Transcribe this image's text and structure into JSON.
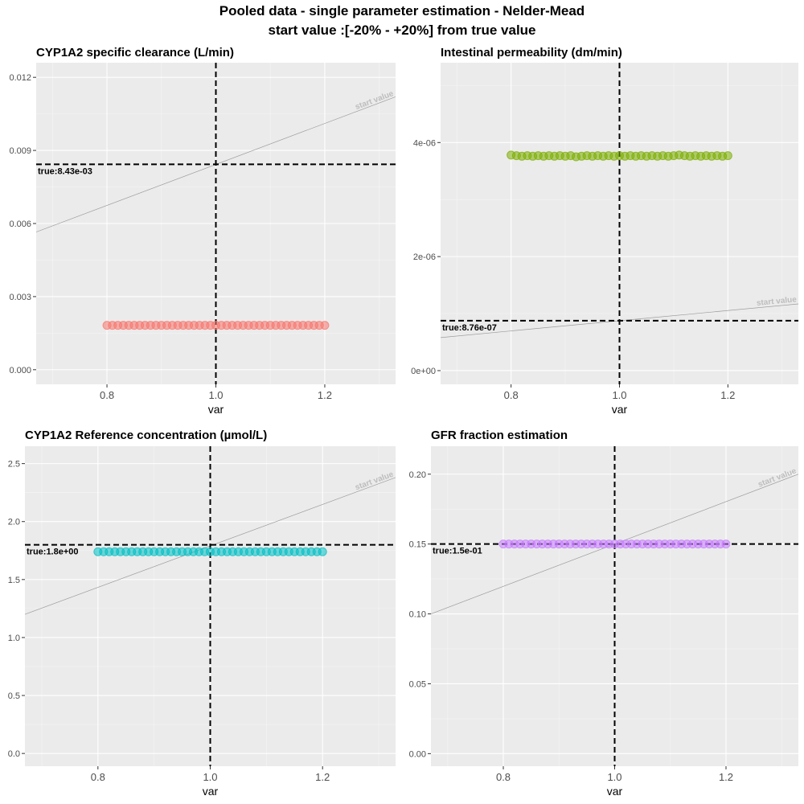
{
  "figure": {
    "title_line1": "Pooled data - single parameter estimation - Nelder-Mead",
    "title_line2": "start value :[-20% - +20%] from true value"
  },
  "chart_data": [
    {
      "type": "scatter",
      "title": "CYP1A2 specific clearance (L/min)",
      "xlabel": "var",
      "ylabel": "",
      "xlim": [
        0.67,
        1.33
      ],
      "ylim": [
        -0.0006,
        0.0126
      ],
      "xticks": [
        0.8,
        1.0,
        1.2
      ],
      "xtick_labels": [
        "0.8",
        "1.0",
        "1.2"
      ],
      "yticks": [
        0,
        0.003,
        0.006,
        0.009,
        0.012
      ],
      "ytick_labels": [
        "0.000",
        "0.003",
        "0.006",
        "0.009",
        "0.012"
      ],
      "grid": true,
      "point_color": "#F8766D",
      "x": [
        0.8,
        0.81,
        0.82,
        0.83,
        0.84,
        0.85,
        0.86,
        0.87,
        0.88,
        0.89,
        0.9,
        0.91,
        0.92,
        0.93,
        0.94,
        0.95,
        0.96,
        0.97,
        0.98,
        0.99,
        1.0,
        1.01,
        1.02,
        1.03,
        1.04,
        1.05,
        1.06,
        1.07,
        1.08,
        1.09,
        1.1,
        1.11,
        1.12,
        1.13,
        1.14,
        1.15,
        1.16,
        1.17,
        1.18,
        1.19,
        1.2
      ],
      "y": [
        0.00182,
        0.00182,
        0.00182,
        0.00182,
        0.00182,
        0.00182,
        0.00182,
        0.00182,
        0.00182,
        0.00182,
        0.00182,
        0.00182,
        0.00182,
        0.00182,
        0.00182,
        0.00182,
        0.00182,
        0.00182,
        0.00182,
        0.00182,
        0.00182,
        0.00182,
        0.00182,
        0.00182,
        0.00182,
        0.00182,
        0.00182,
        0.00182,
        0.00182,
        0.00182,
        0.00182,
        0.00182,
        0.00182,
        0.00182,
        0.00182,
        0.00182,
        0.00182,
        0.00182,
        0.00182,
        0.00182,
        0.00182
      ],
      "true_value": 0.00843,
      "true_label": "true:8.43e-03",
      "start_line": [
        [
          0.67,
          0.00565
        ],
        [
          1.33,
          0.0112
        ]
      ],
      "start_label": "start value",
      "vline_x": 1.0
    },
    {
      "type": "scatter",
      "title": "Intestinal permeability (dm/min)",
      "xlabel": "var",
      "ylabel": "",
      "xlim": [
        0.67,
        1.33
      ],
      "ylim": [
        -2.4e-07,
        5.4e-06
      ],
      "xticks": [
        0.8,
        1.0,
        1.2
      ],
      "xtick_labels": [
        "0.8",
        "1.0",
        "1.2"
      ],
      "yticks": [
        0,
        2e-06,
        4e-06
      ],
      "ytick_labels": [
        "0e+00",
        "2e-06",
        "4e-06"
      ],
      "grid": true,
      "point_color": "#7CAE00",
      "x": [
        0.8,
        0.81,
        0.82,
        0.83,
        0.84,
        0.85,
        0.86,
        0.87,
        0.88,
        0.89,
        0.9,
        0.91,
        0.92,
        0.93,
        0.94,
        0.95,
        0.96,
        0.97,
        0.98,
        0.99,
        1.0,
        1.01,
        1.02,
        1.03,
        1.04,
        1.05,
        1.06,
        1.07,
        1.08,
        1.09,
        1.1,
        1.11,
        1.12,
        1.13,
        1.14,
        1.15,
        1.16,
        1.17,
        1.18,
        1.19,
        1.2
      ],
      "y": [
        3.78e-06,
        3.77e-06,
        3.76e-06,
        3.77e-06,
        3.76e-06,
        3.77e-06,
        3.76e-06,
        3.77e-06,
        3.76e-06,
        3.77e-06,
        3.76e-06,
        3.77e-06,
        3.75e-06,
        3.76e-06,
        3.77e-06,
        3.76e-06,
        3.77e-06,
        3.76e-06,
        3.77e-06,
        3.76e-06,
        3.77e-06,
        3.76e-06,
        3.77e-06,
        3.76e-06,
        3.77e-06,
        3.76e-06,
        3.77e-06,
        3.76e-06,
        3.77e-06,
        3.76e-06,
        3.77e-06,
        3.78e-06,
        3.77e-06,
        3.76e-06,
        3.77e-06,
        3.76e-06,
        3.77e-06,
        3.76e-06,
        3.77e-06,
        3.76e-06,
        3.77e-06
      ],
      "true_value": 8.76e-07,
      "true_label": "true:8.76e-07",
      "start_line": [
        [
          0.67,
          5.8e-07
        ],
        [
          1.33,
          1.17e-06
        ]
      ],
      "start_label": "start value",
      "vline_x": 1.0
    },
    {
      "type": "scatter",
      "title": "CYP1A2 Reference concentration (µmol/L)",
      "xlabel": "var",
      "ylabel": "",
      "xlim": [
        0.67,
        1.33
      ],
      "ylim": [
        -0.11,
        2.65
      ],
      "xticks": [
        0.8,
        1.0,
        1.2
      ],
      "xtick_labels": [
        "0.8",
        "1.0",
        "1.2"
      ],
      "yticks": [
        0,
        0.5,
        1.0,
        1.5,
        2.0,
        2.5
      ],
      "ytick_labels": [
        "0.0",
        "0.5",
        "1.0",
        "1.5",
        "2.0",
        "2.5"
      ],
      "grid": true,
      "point_color": "#00BFC4",
      "x": [
        0.8,
        0.81,
        0.82,
        0.83,
        0.84,
        0.85,
        0.86,
        0.87,
        0.88,
        0.89,
        0.9,
        0.91,
        0.92,
        0.93,
        0.94,
        0.95,
        0.96,
        0.97,
        0.98,
        0.99,
        1.0,
        1.01,
        1.02,
        1.03,
        1.04,
        1.05,
        1.06,
        1.07,
        1.08,
        1.09,
        1.1,
        1.11,
        1.12,
        1.13,
        1.14,
        1.15,
        1.16,
        1.17,
        1.18,
        1.19,
        1.2
      ],
      "y": [
        1.74,
        1.74,
        1.74,
        1.74,
        1.74,
        1.74,
        1.74,
        1.74,
        1.74,
        1.74,
        1.74,
        1.74,
        1.74,
        1.74,
        1.74,
        1.74,
        1.74,
        1.74,
        1.74,
        1.74,
        1.74,
        1.74,
        1.74,
        1.74,
        1.74,
        1.74,
        1.74,
        1.74,
        1.74,
        1.74,
        1.74,
        1.74,
        1.74,
        1.74,
        1.74,
        1.74,
        1.74,
        1.74,
        1.74,
        1.74,
        1.74
      ],
      "true_value": 1.8,
      "true_label": "true:1.8e+00",
      "start_line": [
        [
          0.67,
          1.2
        ],
        [
          1.33,
          2.38
        ]
      ],
      "start_label": "start value",
      "vline_x": 1.0
    },
    {
      "type": "scatter",
      "title": "GFR fraction estimation",
      "xlabel": "var",
      "ylabel": "",
      "xlim": [
        0.67,
        1.33
      ],
      "ylim": [
        -0.009,
        0.22
      ],
      "xticks": [
        0.8,
        1.0,
        1.2
      ],
      "xtick_labels": [
        "0.8",
        "1.0",
        "1.2"
      ],
      "yticks": [
        0,
        0.05,
        0.1,
        0.15,
        0.2
      ],
      "ytick_labels": [
        "0.00",
        "0.05",
        "0.10",
        "0.15",
        "0.20"
      ],
      "grid": true,
      "point_color": "#C77CFF",
      "x": [
        0.8,
        0.81,
        0.82,
        0.83,
        0.84,
        0.85,
        0.86,
        0.87,
        0.88,
        0.89,
        0.9,
        0.91,
        0.92,
        0.93,
        0.94,
        0.95,
        0.96,
        0.97,
        0.98,
        0.99,
        1.0,
        1.01,
        1.02,
        1.03,
        1.04,
        1.05,
        1.06,
        1.07,
        1.08,
        1.09,
        1.1,
        1.11,
        1.12,
        1.13,
        1.14,
        1.15,
        1.16,
        1.17,
        1.18,
        1.19,
        1.2
      ],
      "y": [
        0.15,
        0.15,
        0.15,
        0.15,
        0.15,
        0.15,
        0.15,
        0.15,
        0.15,
        0.15,
        0.15,
        0.15,
        0.15,
        0.15,
        0.15,
        0.15,
        0.15,
        0.15,
        0.15,
        0.15,
        0.15,
        0.15,
        0.15,
        0.15,
        0.15,
        0.15,
        0.15,
        0.15,
        0.15,
        0.15,
        0.15,
        0.15,
        0.15,
        0.15,
        0.15,
        0.15,
        0.15,
        0.15,
        0.15,
        0.15,
        0.15
      ],
      "true_value": 0.15,
      "true_label": "true:1.5e-01",
      "start_line": [
        [
          0.67,
          0.1
        ],
        [
          1.33,
          0.2
        ]
      ],
      "start_label": "start value",
      "vline_x": 1.0
    }
  ]
}
